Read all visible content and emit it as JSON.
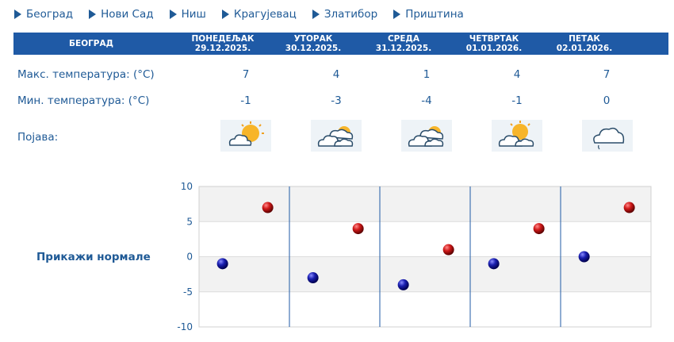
{
  "cities": [
    "Београд",
    "Нови Сад",
    "Ниш",
    "Крагујевац",
    "Златибор",
    "Приштина"
  ],
  "header": {
    "city": "БЕОГРАД"
  },
  "days": [
    {
      "name": "ПОНЕДЕЉАК",
      "date": "29.12.2025.",
      "max": "7",
      "min": "-1",
      "icon": "sun-cloud-icon"
    },
    {
      "name": "УТОРАК",
      "date": "30.12.2025.",
      "max": "4",
      "min": "-3",
      "icon": "cloudy-icon"
    },
    {
      "name": "СРЕДА",
      "date": "31.12.2025.",
      "max": "1",
      "min": "-4",
      "icon": "cloudy-icon"
    },
    {
      "name": "ЧЕТВРТАК",
      "date": "01.01.2026.",
      "max": "4",
      "min": "-1",
      "icon": "sun-cloud-icon"
    },
    {
      "name": "ПЕТАК",
      "date": "02.01.2026.",
      "max": "7",
      "min": "0",
      "icon": "drizzle-icon"
    }
  ],
  "labels": {
    "max_temp": "Макс. температура: (°C)",
    "min_temp": "Мин. температура: (°C)",
    "phenomenon": "Појава:",
    "show_normals": "Прикажи нормале"
  },
  "colors": {
    "header_bg": "#1f5aa6",
    "text": "#1f5a96",
    "max_marker": "#d11a1a",
    "min_marker": "#1a1fb0"
  },
  "chart_data": {
    "type": "scatter",
    "categories": [
      "ПОНЕДЕЉАК",
      "УТОРАК",
      "СРЕДА",
      "ЧЕТВРТАК",
      "ПЕТАК"
    ],
    "series": [
      {
        "values": [
          7,
          4,
          1,
          4,
          7
        ]
      },
      {
        "values": [
          -1,
          -3,
          -4,
          -1,
          0
        ]
      }
    ],
    "ylim": [
      -10,
      10
    ],
    "yticks": [
      "10",
      "5",
      "0",
      "-5",
      "-10"
    ],
    "grid": true
  }
}
